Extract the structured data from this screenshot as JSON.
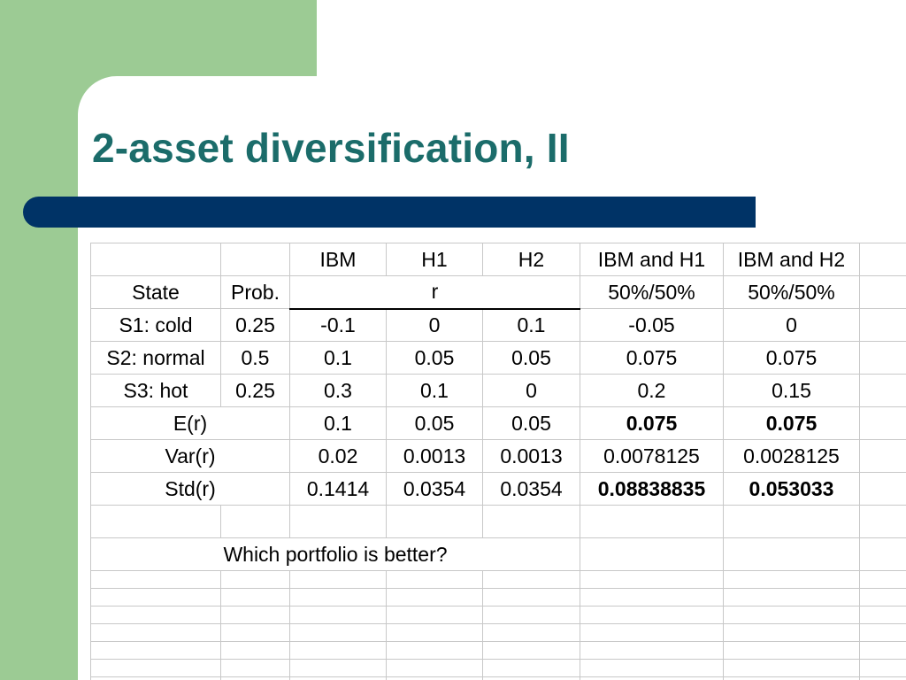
{
  "title": "2-asset diversification, II",
  "colors": {
    "green": "#9ccb94",
    "navy": "#003366",
    "title": "#1b6c6a"
  },
  "table": {
    "header": [
      "IBM",
      "H1",
      "H2",
      "IBM and H1",
      "IBM and H2"
    ],
    "row2": {
      "state": "State",
      "prob": "Prob.",
      "r": "r",
      "p1": "50%/50%",
      "p2": "50%/50%"
    },
    "states": [
      {
        "name": "S1: cold",
        "prob": "0.25",
        "vals": [
          "-0.1",
          "0",
          "0.1",
          "-0.05",
          "0"
        ]
      },
      {
        "name": "S2: normal",
        "prob": "0.5",
        "vals": [
          "0.1",
          "0.05",
          "0.05",
          "0.075",
          "0.075"
        ]
      },
      {
        "name": "S3: hot",
        "prob": "0.25",
        "vals": [
          "0.3",
          "0.1",
          "0",
          "0.2",
          "0.15"
        ]
      }
    ],
    "stats": [
      {
        "name": "E(r)",
        "vals": [
          "0.1",
          "0.05",
          "0.05",
          "0.075",
          "0.075"
        ]
      },
      {
        "name": "Var(r)",
        "vals": [
          "0.02",
          "0.0013",
          "0.0013",
          "0.0078125",
          "0.0028125"
        ]
      },
      {
        "name": "Std(r)",
        "vals": [
          "0.1414",
          "0.0354",
          "0.0354",
          "0.08838835",
          "0.053033"
        ]
      }
    ],
    "question": "Which portfolio is better?"
  }
}
